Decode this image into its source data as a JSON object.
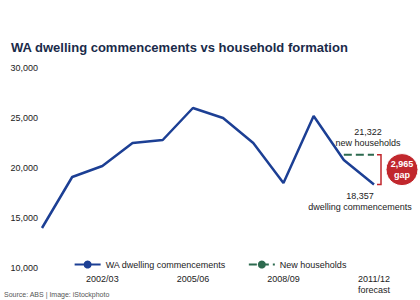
{
  "chart_data": {
    "type": "line",
    "title": "WA dwelling commencements vs household formation",
    "source": "Source: ABS | Image: iStockphoto",
    "categories": [
      null,
      null,
      "2002/03",
      null,
      null,
      "2005/06",
      null,
      null,
      "2008/09",
      null,
      null,
      "2011/12\nforecast"
    ],
    "series": [
      {
        "name": "WA dwelling commencements",
        "color": "#1c3f94",
        "line_style": "solid",
        "values": [
          14000,
          19100,
          20200,
          22500,
          22800,
          26000,
          25000,
          22500,
          18500,
          25200,
          20800,
          18357
        ]
      },
      {
        "name": "New households",
        "color": "#2d6a4f",
        "line_style": "dashed",
        "values": [
          null,
          null,
          null,
          null,
          null,
          null,
          null,
          null,
          null,
          null,
          21322,
          21322
        ]
      }
    ],
    "ylim": [
      10000,
      30000
    ],
    "yticks": [
      {
        "value": 10000,
        "label": "10,000"
      },
      {
        "value": 15000,
        "label": "15,000"
      },
      {
        "value": 20000,
        "label": "20,000"
      },
      {
        "value": 25000,
        "label": "25,000"
      },
      {
        "value": 30000,
        "label": "30,000"
      }
    ],
    "grid": false,
    "legend": "bottom",
    "annotations": [
      {
        "text": "21,322\nnew households",
        "value": 21322
      },
      {
        "text": "18,357\ndwelling commencements",
        "value": 18357
      },
      {
        "text": "2,965\ngap",
        "value": 2965
      }
    ]
  }
}
